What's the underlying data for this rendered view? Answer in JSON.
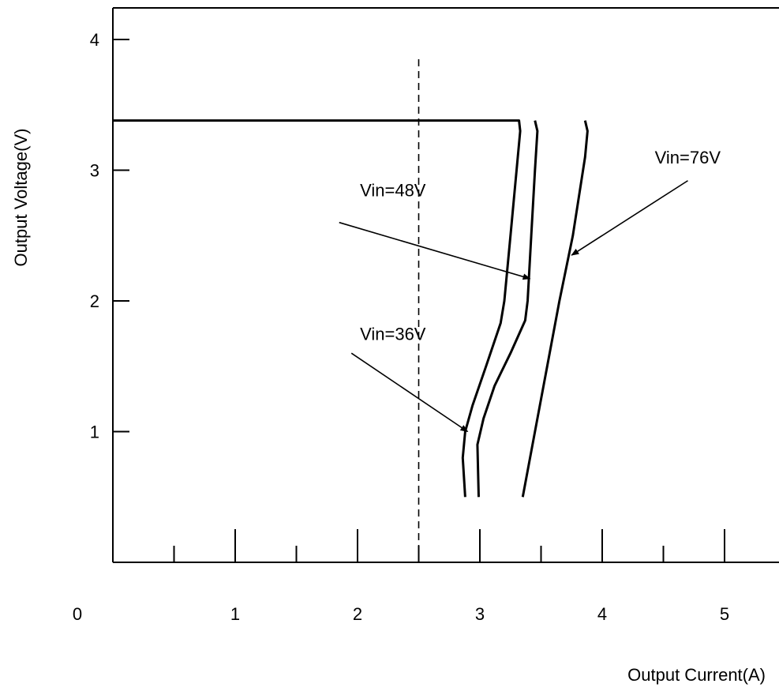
{
  "chart_data": {
    "type": "line",
    "title": "",
    "xlabel": "Output Current(A)",
    "ylabel": "Output Voltage(V)",
    "xlim": [
      0,
      5.5
    ],
    "ylim": [
      0,
      4.25
    ],
    "x_ticks": [
      0,
      1,
      2,
      3,
      4,
      5
    ],
    "x_minor_ticks": [
      0.5,
      1.5,
      2.5,
      3.5,
      4.5
    ],
    "y_ticks": [
      1,
      2,
      3,
      4
    ],
    "grid": false,
    "legend": "none",
    "reference_line": {
      "x": 2.5,
      "style": "dashed"
    },
    "series": [
      {
        "name": "Vin=36V",
        "points": [
          [
            0,
            3.38
          ],
          [
            3.32,
            3.38
          ],
          [
            3.33,
            3.3
          ],
          [
            3.3,
            3.0
          ],
          [
            3.25,
            2.5
          ],
          [
            3.2,
            2.0
          ],
          [
            3.17,
            1.83
          ],
          [
            3.05,
            1.5
          ],
          [
            2.94,
            1.2
          ],
          [
            2.88,
            1.0
          ],
          [
            2.86,
            0.8
          ],
          [
            2.88,
            0.5
          ]
        ]
      },
      {
        "name": "Vin=48V",
        "points": [
          [
            3.45,
            3.38
          ],
          [
            3.47,
            3.3
          ],
          [
            3.45,
            3.0
          ],
          [
            3.42,
            2.5
          ],
          [
            3.39,
            2.0
          ],
          [
            3.37,
            1.85
          ],
          [
            3.25,
            1.6
          ],
          [
            3.12,
            1.35
          ],
          [
            3.03,
            1.1
          ],
          [
            2.98,
            0.9
          ],
          [
            2.99,
            0.5
          ]
        ]
      },
      {
        "name": "Vin=76V",
        "points": [
          [
            3.86,
            3.38
          ],
          [
            3.88,
            3.3
          ],
          [
            3.86,
            3.1
          ],
          [
            3.76,
            2.5
          ],
          [
            3.65,
            2.0
          ],
          [
            3.55,
            1.5
          ],
          [
            3.45,
            1.0
          ],
          [
            3.35,
            0.5
          ]
        ]
      }
    ],
    "annotations": [
      {
        "text": "Vin=48V",
        "text_x": 2.02,
        "text_y": 2.8,
        "arrow_from": [
          1.85,
          2.6
        ],
        "arrow_to": [
          3.41,
          2.17
        ]
      },
      {
        "text": "Vin=36V",
        "text_x": 2.02,
        "text_y": 1.7,
        "arrow_from": [
          1.95,
          1.6
        ],
        "arrow_to": [
          2.9,
          1.0
        ]
      },
      {
        "text": "Vin=76V",
        "text_x": 4.43,
        "text_y": 3.05,
        "arrow_from": [
          4.7,
          2.92
        ],
        "arrow_to": [
          3.75,
          2.35
        ]
      }
    ]
  }
}
